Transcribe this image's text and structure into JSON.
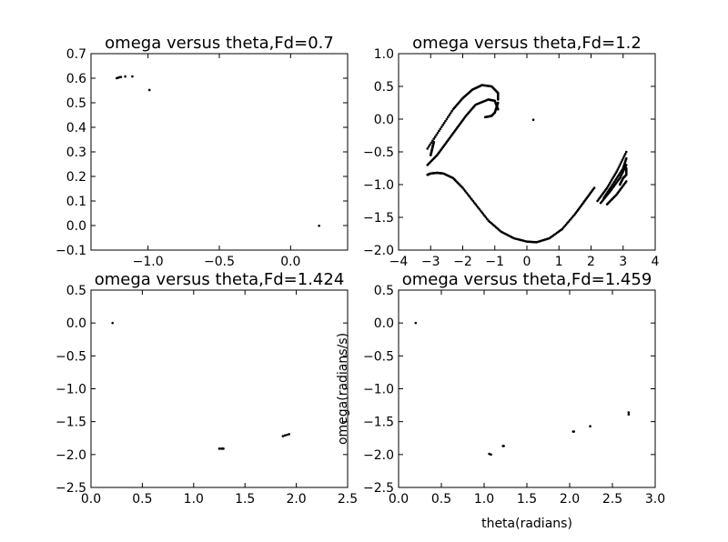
{
  "chart_data": [
    {
      "type": "scatter",
      "title": "omega versus theta,Fd=0.7",
      "xlabel": "",
      "ylabel": "",
      "xlim": [
        -1.4,
        0.4
      ],
      "ylim": [
        -0.1,
        0.7
      ],
      "xticks": [
        -1.0,
        -0.5,
        0.0
      ],
      "xtick_labels": [
        "−1.0",
        "−0.5",
        "0.0"
      ],
      "yticks": [
        -0.1,
        0.0,
        0.1,
        0.2,
        0.3,
        0.4,
        0.5,
        0.6,
        0.7
      ],
      "ytick_labels": [
        "−0.1",
        "0.0",
        "0.1",
        "0.2",
        "0.3",
        "0.4",
        "0.5",
        "0.6",
        "0.7"
      ],
      "grid": false,
      "marker_color": "#000000",
      "series": [
        {
          "points": [
            [
              -1.22,
              0.6
            ],
            [
              -1.21,
              0.602
            ],
            [
              -1.2,
              0.604
            ],
            [
              -1.19,
              0.605
            ],
            [
              -1.16,
              0.607
            ],
            [
              -1.11,
              0.607
            ],
            [
              -0.99,
              0.552
            ],
            [
              0.2,
              -0.001
            ]
          ]
        }
      ]
    },
    {
      "type": "scatter",
      "title": "omega versus theta,Fd=1.2",
      "xlabel": "",
      "ylabel": "",
      "xlim": [
        -4,
        4
      ],
      "ylim": [
        -2.0,
        1.0
      ],
      "xticks": [
        -4,
        -3,
        -2,
        -1,
        0,
        1,
        2,
        3,
        4
      ],
      "xtick_labels": [
        "−4",
        "−3",
        "−2",
        "−1",
        "0",
        "1",
        "2",
        "3",
        "4"
      ],
      "yticks": [
        -2.0,
        -1.5,
        -1.0,
        -0.5,
        0.0,
        0.5,
        1.0
      ],
      "ytick_labels": [
        "−2.0",
        "−1.5",
        "−1.0",
        "−0.5",
        "0.0",
        "0.5",
        "1.0"
      ],
      "grid": false,
      "marker_color": "#000000",
      "series": [
        {
          "curves": [
            [
              [
                -3.1,
                -0.85
              ],
              [
                -3.0,
                -0.83
              ],
              [
                -2.8,
                -0.82
              ],
              [
                -2.6,
                -0.83
              ],
              [
                -2.3,
                -0.9
              ],
              [
                -2.0,
                -1.05
              ],
              [
                -1.6,
                -1.3
              ],
              [
                -1.2,
                -1.55
              ],
              [
                -0.8,
                -1.72
              ],
              [
                -0.4,
                -1.82
              ],
              [
                0.0,
                -1.87
              ],
              [
                0.3,
                -1.88
              ],
              [
                0.7,
                -1.82
              ],
              [
                1.1,
                -1.68
              ],
              [
                1.5,
                -1.45
              ],
              [
                1.8,
                -1.25
              ],
              [
                2.1,
                -1.05
              ]
            ],
            [
              [
                -3.1,
                -0.7
              ],
              [
                -2.8,
                -0.55
              ],
              [
                -2.5,
                -0.35
              ],
              [
                -2.2,
                -0.15
              ],
              [
                -1.9,
                0.05
              ],
              [
                -1.6,
                0.22
              ],
              [
                -1.2,
                0.3
              ],
              [
                -1.0,
                0.28
              ],
              [
                -0.9,
                0.15
              ]
            ],
            [
              [
                -3.1,
                -0.45
              ],
              [
                -2.7,
                -0.15
              ],
              [
                -2.3,
                0.15
              ],
              [
                -2.0,
                0.32
              ],
              [
                -1.7,
                0.45
              ],
              [
                -1.4,
                0.52
              ],
              [
                -1.1,
                0.5
              ],
              [
                -0.9,
                0.4
              ],
              [
                -0.9,
                0.3
              ]
            ],
            [
              [
                -0.9,
                0.25
              ],
              [
                -1.0,
                0.1
              ],
              [
                -1.1,
                0.05
              ],
              [
                -1.3,
                0.03
              ]
            ],
            [
              [
                -3.0,
                -0.55
              ],
              [
                -2.95,
                -0.45
              ],
              [
                -2.9,
                -0.35
              ]
            ],
            [
              [
                2.2,
                -1.25
              ],
              [
                2.5,
                -1.05
              ],
              [
                2.8,
                -0.8
              ],
              [
                3.1,
                -0.5
              ]
            ],
            [
              [
                2.3,
                -1.28
              ],
              [
                2.6,
                -1.1
              ],
              [
                2.9,
                -0.9
              ],
              [
                3.1,
                -0.7
              ]
            ],
            [
              [
                2.4,
                -1.2
              ],
              [
                2.7,
                -0.98
              ],
              [
                3.0,
                -0.75
              ],
              [
                3.1,
                -0.6
              ]
            ],
            [
              [
                2.5,
                -1.3
              ],
              [
                2.8,
                -1.15
              ],
              [
                3.1,
                -0.95
              ]
            ],
            [
              [
                2.9,
                -1.0
              ],
              [
                3.0,
                -0.9
              ],
              [
                3.1,
                -0.85
              ],
              [
                3.1,
                -0.75
              ]
            ]
          ],
          "points": [
            [
              0.2,
              -0.01
            ]
          ]
        }
      ]
    },
    {
      "type": "scatter",
      "title": "omega versus theta,Fd=1.424",
      "xlabel": "",
      "ylabel": "",
      "xlim": [
        0.0,
        2.5
      ],
      "ylim": [
        -2.5,
        0.5
      ],
      "xticks": [
        0.0,
        0.5,
        1.0,
        1.5,
        2.0,
        2.5
      ],
      "xtick_labels": [
        "0.0",
        "0.5",
        "1.0",
        "1.5",
        "2.0",
        "2.5"
      ],
      "yticks": [
        -2.5,
        -2.0,
        -1.5,
        -1.0,
        -0.5,
        0.0,
        0.5
      ],
      "ytick_labels": [
        "−2.5",
        "−2.0",
        "−1.5",
        "−1.0",
        "−0.5",
        "0.0",
        "0.5"
      ],
      "grid": false,
      "marker_color": "#000000",
      "series": [
        {
          "points": [
            [
              0.21,
              0.0
            ],
            [
              1.25,
              -1.91
            ],
            [
              1.27,
              -1.91
            ],
            [
              1.28,
              -1.91
            ],
            [
              1.29,
              -1.91
            ],
            [
              1.87,
              -1.72
            ],
            [
              1.89,
              -1.71
            ],
            [
              1.91,
              -1.7
            ],
            [
              1.93,
              -1.69
            ]
          ]
        }
      ]
    },
    {
      "type": "scatter",
      "title": "omega versus theta,Fd=1.459",
      "xlabel": "theta(radians)",
      "ylabel": "omega(radians/s)",
      "xlim": [
        0.0,
        3.0
      ],
      "ylim": [
        -2.5,
        0.5
      ],
      "xticks": [
        0.0,
        0.5,
        1.0,
        1.5,
        2.0,
        2.5,
        3.0
      ],
      "xtick_labels": [
        "0.0",
        "0.5",
        "1.0",
        "1.5",
        "2.0",
        "2.5",
        "3.0"
      ],
      "yticks": [
        -2.5,
        -2.0,
        -1.5,
        -1.0,
        -0.5,
        0.0,
        0.5
      ],
      "ytick_labels": [
        "−2.5",
        "−2.0",
        "−1.5",
        "−1.0",
        "−0.5",
        "0.0",
        "0.5"
      ],
      "grid": false,
      "marker_color": "#000000",
      "series": [
        {
          "points": [
            [
              0.2,
              0.0
            ],
            [
              1.06,
              -1.99
            ],
            [
              1.08,
              -2.0
            ],
            [
              1.22,
              -1.87
            ],
            [
              1.23,
              -1.87
            ],
            [
              2.04,
              -1.65
            ],
            [
              2.05,
              -1.65
            ],
            [
              2.24,
              -1.57
            ],
            [
              2.69,
              -1.36
            ],
            [
              2.69,
              -1.39
            ]
          ]
        }
      ]
    }
  ]
}
